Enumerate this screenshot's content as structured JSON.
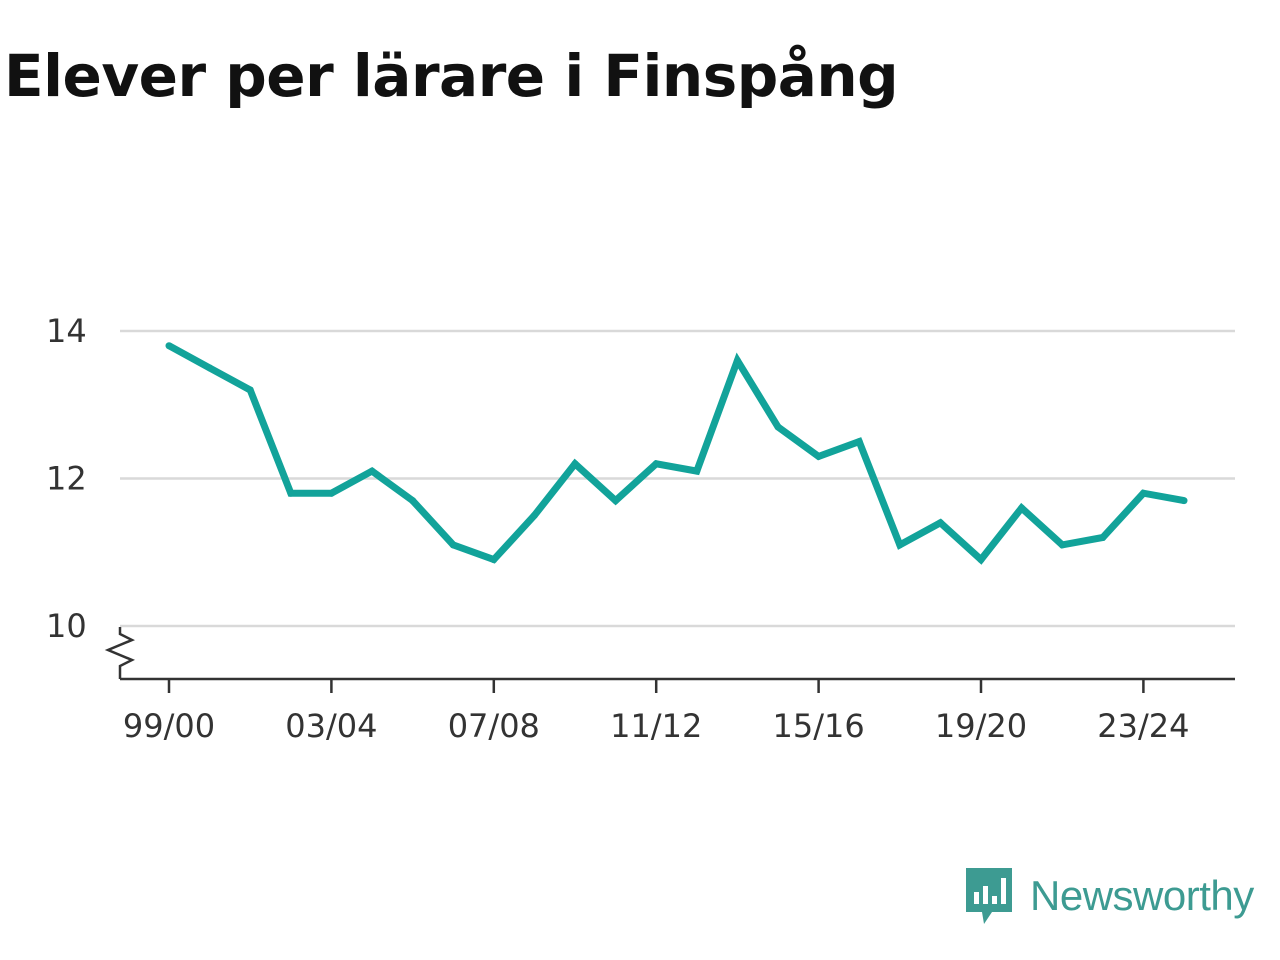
{
  "chart_data": {
    "type": "line",
    "title": "Elever per lärare i Finspång",
    "xlabel": "",
    "ylabel": "",
    "x": [
      "99/00",
      "00/01",
      "01/02",
      "02/03",
      "03/04",
      "04/05",
      "05/06",
      "06/07",
      "07/08",
      "08/09",
      "09/10",
      "10/11",
      "11/12",
      "12/13",
      "13/14",
      "14/15",
      "15/16",
      "16/17",
      "17/18",
      "18/19",
      "19/20",
      "20/21",
      "21/22",
      "22/23",
      "23/24",
      "24/25"
    ],
    "x_tick_labels": [
      "99/00",
      "03/04",
      "07/08",
      "11/12",
      "15/16",
      "19/20",
      "23/24"
    ],
    "y_tick_labels": [
      "10",
      "12",
      "14"
    ],
    "series": [
      {
        "values": [
          13.8,
          13.5,
          13.2,
          11.8,
          11.8,
          12.1,
          11.7,
          11.1,
          10.9,
          11.5,
          12.2,
          11.7,
          12.2,
          12.1,
          13.6,
          12.7,
          12.3,
          12.5,
          11.1,
          11.4,
          10.9,
          11.6,
          11.1,
          11.2,
          11.8,
          11.7
        ],
        "color": "#12a39a"
      }
    ],
    "ylim": [
      10,
      14
    ],
    "grid": true,
    "y_axis_break": true,
    "legend": "none"
  },
  "brand": {
    "name": "Newsworthy",
    "color": "#3d9b92",
    "icon": "chat-bubble-bar-chart-icon"
  }
}
